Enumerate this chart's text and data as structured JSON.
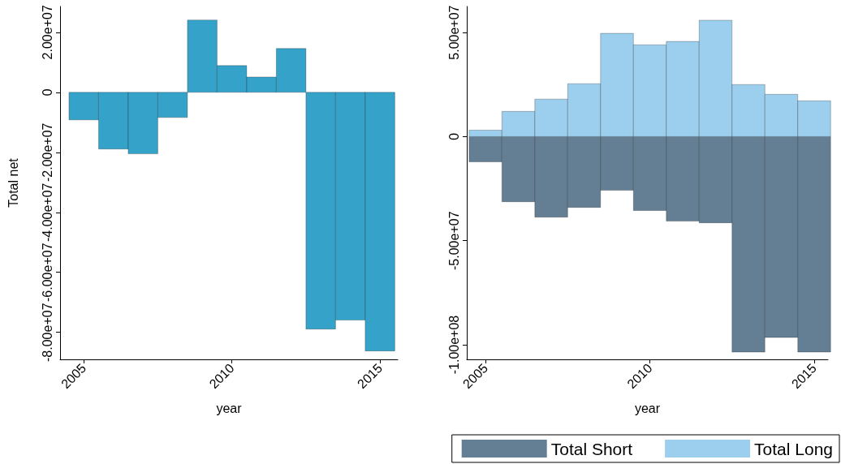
{
  "chart_data": [
    {
      "type": "bar",
      "xlabel": "year",
      "ylabel": "Total net",
      "x": [
        2005,
        2006,
        2007,
        2008,
        2009,
        2010,
        2011,
        2012,
        2013,
        2014,
        2015
      ],
      "series": [
        {
          "color": "#35a2c9",
          "values": [
            -9200000,
            -18900000,
            -20500000,
            -8400000,
            24100000,
            8900000,
            5100000,
            14600000,
            -78900000,
            -75900000,
            -86200000
          ]
        }
      ],
      "xlim": [
        2004.2,
        2015.6
      ],
      "xticks": [
        2005,
        2010,
        2015
      ],
      "ylim": [
        -89000000,
        28600000
      ],
      "yticks": [
        {
          "value": -80000000,
          "label": "-8.00e+07"
        },
        {
          "value": -60000000,
          "label": "-6.00e+07"
        },
        {
          "value": -40000000,
          "label": "-4.00e+07"
        },
        {
          "value": -20000000,
          "label": "-2.00e+07"
        },
        {
          "value": 0,
          "label": "0"
        },
        {
          "value": 20000000,
          "label": "2.00e+07"
        }
      ],
      "grid": false,
      "legend": false
    },
    {
      "type": "bar",
      "xlabel": "year",
      "x": [
        2005,
        2006,
        2007,
        2008,
        2009,
        2010,
        2011,
        2012,
        2013,
        2014,
        2015
      ],
      "series": [
        {
          "name": "Total Short",
          "color": "#647f94",
          "values": [
            -12100000,
            -31300000,
            -38700000,
            -34000000,
            -25800000,
            -35500000,
            -40600000,
            -41400000,
            -103500000,
            -96500000,
            -103500000
          ]
        },
        {
          "name": "Total Long",
          "color": "#9ccfee",
          "values": [
            3100000,
            12100000,
            18000000,
            25400000,
            49600000,
            44100000,
            45700000,
            55900000,
            25000000,
            20300000,
            17200000
          ]
        }
      ],
      "xlim": [
        2004.43,
        2015.42
      ],
      "xticks": [
        2005,
        2010,
        2015
      ],
      "ylim": [
        -107000000,
        62500000
      ],
      "yticks": [
        {
          "value": -100000000,
          "label": "-1.00e+08"
        },
        {
          "value": -50000000,
          "label": "-5.00e+07"
        },
        {
          "value": 0,
          "label": "0"
        },
        {
          "value": 50000000,
          "label": "5.00e+07"
        }
      ],
      "grid": false,
      "legend": "bottom right",
      "stacked": true
    }
  ]
}
